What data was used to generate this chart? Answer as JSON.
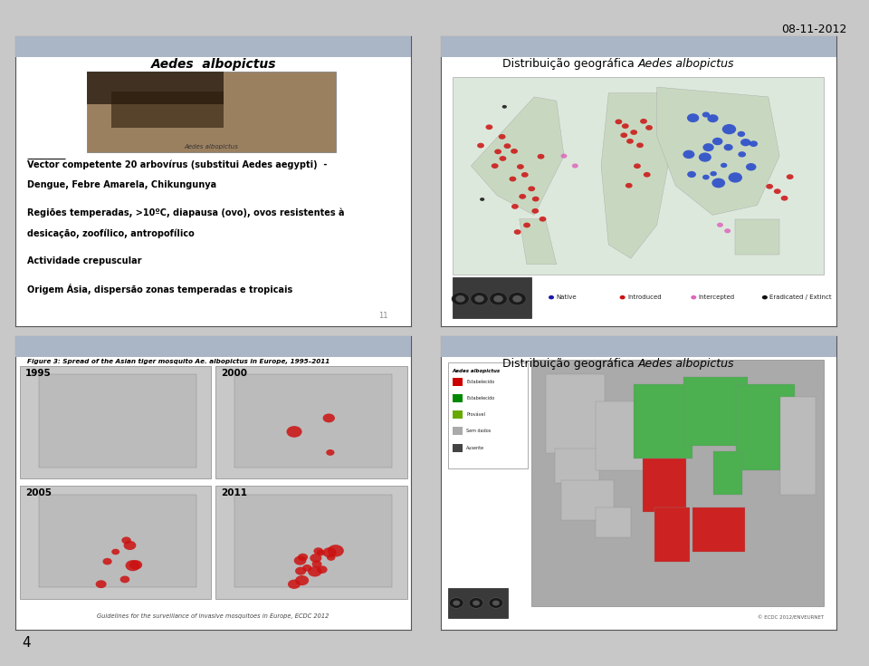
{
  "date_text": "08-11-2012",
  "page_number": "4",
  "bg_color": "#c8c8c8",
  "slide_bg": "#ffffff",
  "header_color": "#b0b8c8",
  "panel1": {
    "title": "Aedes  albopictus",
    "image_caption": "Aedes albopictus",
    "line1a": "Vector",
    "line1b": " competente 20 arbovírus (substitui ",
    "line1c": "Aedes aegypti)",
    "line1d": "  -",
    "line2": "Dengue, Febre Amarela, Chikungunya",
    "line3": "Regiões temperadas, >10ºC, diapausa (ovo), ovos resistentes à",
    "line4": "desicação, zoofílico, antropofílico",
    "line5": "Actividade crepuscular",
    "line6": "Origem Ásia, dispersão zonas temperadas e tropicais",
    "footnote": "11"
  },
  "panel2": {
    "title_normal": "Distribuição geográfica ",
    "title_italic": "Aedes albopictus",
    "legend_labels": [
      "Native",
      "Introduced",
      "Intercepted",
      "Eradicated / Extinct"
    ],
    "legend_colors": [
      "#1a1aaa",
      "#cc1111",
      "#dd66bb",
      "#111111"
    ]
  },
  "panel3": {
    "figure_caption": "Figure 3: Spread of the Asian tiger mosquito Ae. albopictus in Europe, 1995–2011",
    "years": [
      "1995",
      "2000",
      "2005",
      "2011"
    ],
    "footer": "Guidelines for the surveillance of invasive mosquitoes in Europe, ECDC 2012"
  },
  "panel4": {
    "title_normal": "Distribuição geográfica ",
    "title_italic": "Aedes albopictus",
    "legend_title": "Aedes albopictus",
    "footer": "© ECDC 2012/ENVEURNET"
  }
}
